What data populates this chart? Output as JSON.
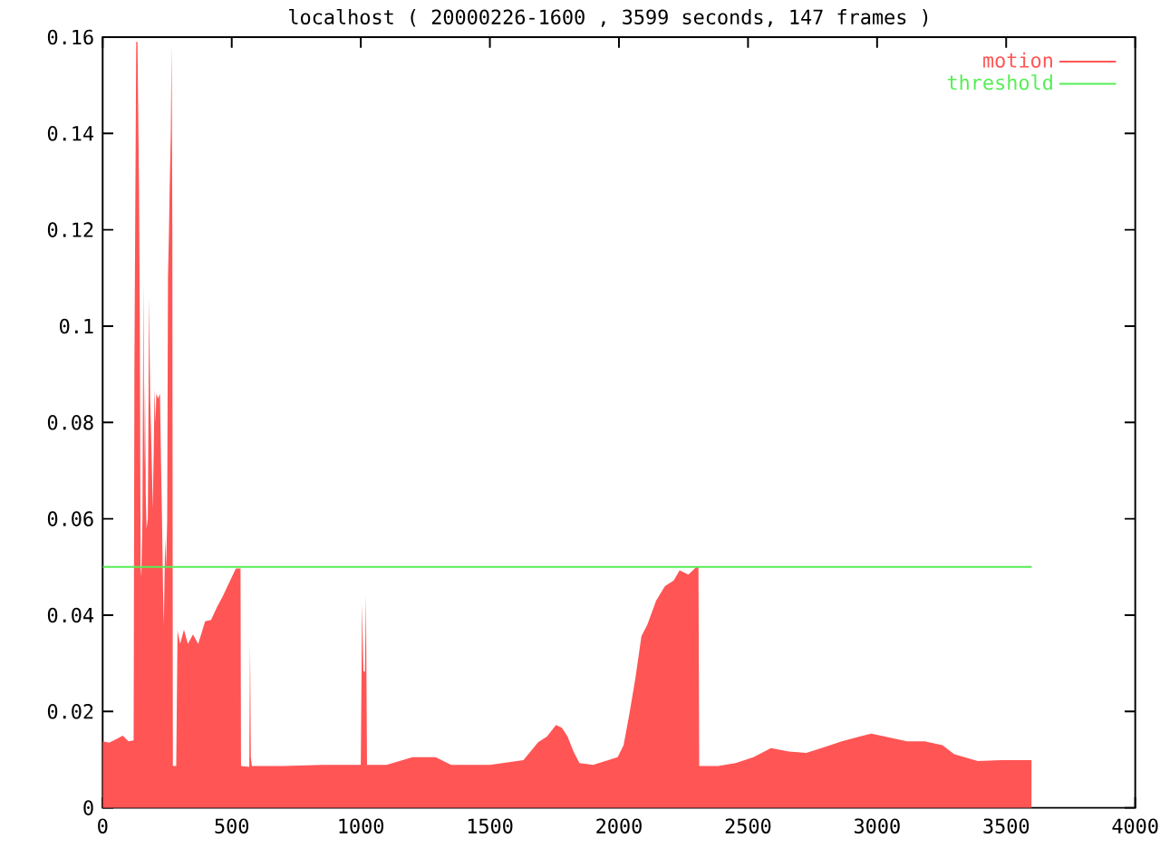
{
  "chart_data": {
    "type": "area",
    "title": "localhost ( 20000226-1600 , 3599 seconds, 147 frames )",
    "series": [
      {
        "name": "motion",
        "color": "#ff5555",
        "x": [
          0,
          25,
          50,
          78,
          100,
          120,
          123,
          130,
          135,
          137,
          141,
          144,
          147,
          150,
          154,
          158,
          161,
          164,
          167,
          170,
          175,
          180,
          184,
          187,
          191,
          194,
          198,
          201,
          205,
          208,
          215,
          222,
          226,
          230,
          234,
          237,
          242,
          246,
          250,
          253,
          257,
          260,
          264,
          267,
          270,
          272,
          285,
          290,
          300,
          315,
          330,
          350,
          370,
          397,
          420,
          443,
          466,
          489,
          516,
          530,
          534,
          536,
          568,
          571,
          574,
          578,
          700,
          850,
          1000,
          1005,
          1010,
          1016,
          1020,
          1024,
          1100,
          1200,
          1290,
          1350,
          1500,
          1630,
          1687,
          1721,
          1756,
          1779,
          1801,
          1824,
          1847,
          1900,
          1995,
          2018,
          2041,
          2064,
          2087,
          2110,
          2144,
          2178,
          2212,
          2235,
          2269,
          2300,
          2308,
          2311,
          2384,
          2452,
          2521,
          2589,
          2658,
          2726,
          2795,
          2863,
          2932,
          2977,
          3047,
          3116,
          3184,
          3253,
          3299,
          3390,
          3482,
          3599
        ],
        "values": [
          0.0138,
          0.0135,
          0.0142,
          0.015,
          0.0138,
          0.014,
          0.092,
          0.159,
          0.159,
          0.148,
          0.128,
          0.1,
          0.05,
          0.048,
          0.06,
          0.109,
          0.07,
          0.089,
          0.065,
          0.058,
          0.06,
          0.106,
          0.085,
          0.079,
          0.07,
          0.062,
          0.075,
          0.087,
          0.08,
          0.086,
          0.085,
          0.086,
          0.072,
          0.06,
          0.045,
          0.038,
          0.056,
          0.05,
          0.06,
          0.11,
          0.12,
          0.13,
          0.14,
          0.1585,
          0.12,
          0.0087,
          0.0087,
          0.0368,
          0.034,
          0.037,
          0.034,
          0.036,
          0.034,
          0.0387,
          0.039,
          0.0417,
          0.044,
          0.0466,
          0.0497,
          0.0497,
          0.0497,
          0.0087,
          0.0085,
          0.034,
          0.0105,
          0.0087,
          0.0087,
          0.0089,
          0.0089,
          0.0423,
          0.0283,
          0.0283,
          0.0442,
          0.0089,
          0.0089,
          0.0105,
          0.0105,
          0.0089,
          0.0089,
          0.0099,
          0.0136,
          0.0148,
          0.0172,
          0.0166,
          0.0148,
          0.0117,
          0.0093,
          0.0089,
          0.0105,
          0.013,
          0.0197,
          0.027,
          0.0356,
          0.038,
          0.043,
          0.046,
          0.0472,
          0.0493,
          0.0484,
          0.05,
          0.05,
          0.0087,
          0.0087,
          0.0093,
          0.0105,
          0.0124,
          0.0117,
          0.0114,
          0.0126,
          0.0138,
          0.0148,
          0.0154,
          0.0146,
          0.0138,
          0.0138,
          0.013,
          0.0111,
          0.0097,
          0.0099,
          0.0099
        ]
      },
      {
        "name": "threshold",
        "type": "line",
        "color": "#55ee55",
        "x": [
          0,
          3599
        ],
        "values": [
          0.05,
          0.05
        ]
      }
    ],
    "xlim": [
      0,
      4000
    ],
    "xticks": [
      0,
      500,
      1000,
      1500,
      2000,
      2500,
      3000,
      3500,
      4000
    ],
    "ylim": [
      0,
      0.16
    ],
    "yticks": [
      0,
      0.02,
      0.04,
      0.06,
      0.08,
      0.1,
      0.12,
      0.14,
      0.16
    ],
    "legend": "top right"
  }
}
